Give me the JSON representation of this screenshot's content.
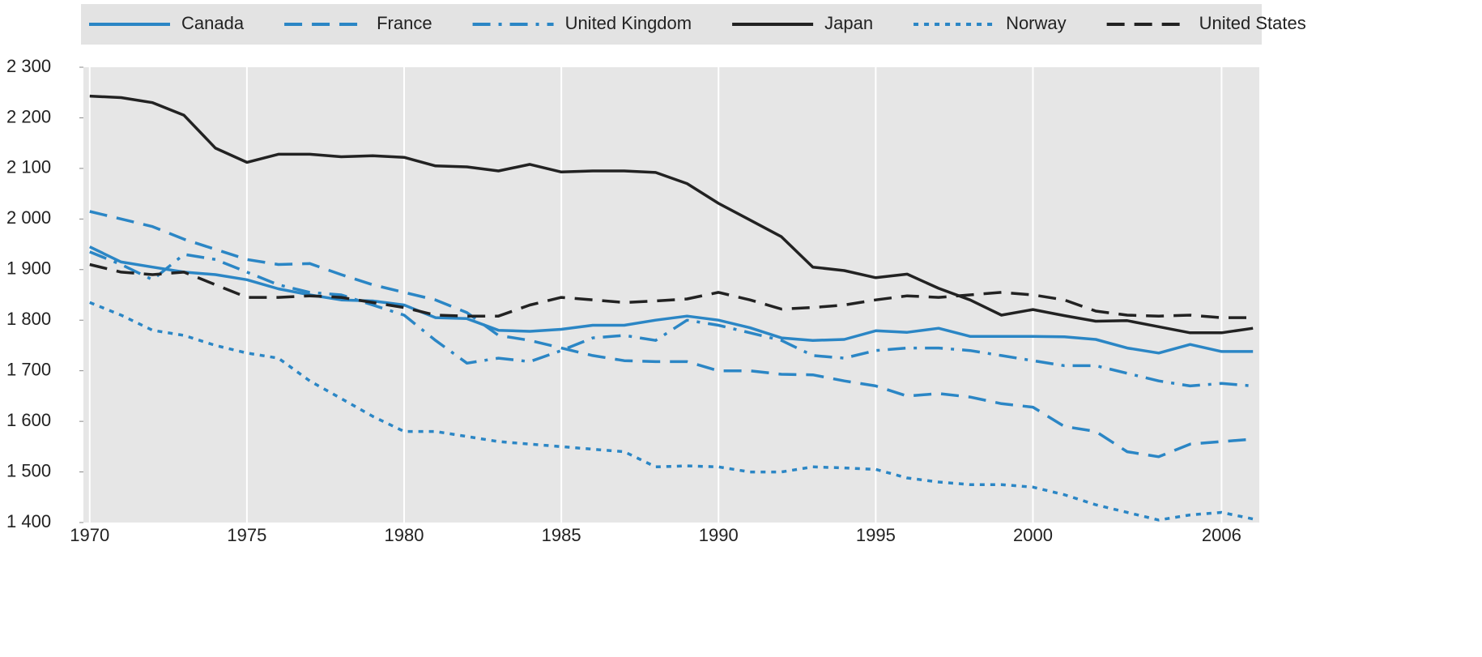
{
  "chart_data": {
    "type": "line",
    "x": [
      1970,
      1971,
      1972,
      1973,
      1974,
      1975,
      1976,
      1977,
      1978,
      1979,
      1980,
      1981,
      1982,
      1983,
      1984,
      1985,
      1986,
      1987,
      1988,
      1989,
      1990,
      1991,
      1992,
      1993,
      1994,
      1995,
      1996,
      1997,
      1998,
      1999,
      2000,
      2001,
      2002,
      2003,
      2004,
      2005,
      2006,
      2007
    ],
    "xlim": [
      1969.8,
      2007.2
    ],
    "xticks": [
      1970,
      1975,
      1980,
      1985,
      1990,
      1995,
      2000,
      2006
    ],
    "ylim": [
      1400,
      2300
    ],
    "yticks": [
      {
        "value": 1400,
        "label": "1 400"
      },
      {
        "value": 1500,
        "label": "1 500"
      },
      {
        "value": 1600,
        "label": "1 600"
      },
      {
        "value": 1700,
        "label": "1 700"
      },
      {
        "value": 1800,
        "label": "1 800"
      },
      {
        "value": 1900,
        "label": "1 900"
      },
      {
        "value": 2000,
        "label": "2 000"
      },
      {
        "value": 2100,
        "label": "2 100"
      },
      {
        "value": 2200,
        "label": "2 200"
      },
      {
        "value": 2300,
        "label": "2 300"
      }
    ],
    "grid": "x",
    "legend": "top",
    "series": [
      {
        "name": "Canada",
        "color": "#2b86c5",
        "style": "solid",
        "values": [
          1945,
          1915,
          1905,
          1895,
          1890,
          1880,
          1862,
          1850,
          1840,
          1838,
          1830,
          1805,
          1803,
          1780,
          1778,
          1782,
          1790,
          1790,
          1800,
          1808,
          1800,
          1785,
          1765,
          1760,
          1762,
          1779,
          1776,
          1784,
          1768,
          1768,
          1768,
          1767,
          1762,
          1745,
          1735,
          1752,
          1738,
          1738
        ]
      },
      {
        "name": "France",
        "color": "#2b86c5",
        "style": "dashed",
        "values": [
          2015,
          2000,
          1985,
          1960,
          1940,
          1920,
          1910,
          1912,
          1890,
          1870,
          1855,
          1840,
          1815,
          1770,
          1760,
          1745,
          1730,
          1720,
          1718,
          1718,
          1700,
          1700,
          1693,
          1692,
          1680,
          1670,
          1650,
          1655,
          1648,
          1635,
          1628,
          1590,
          1580,
          1540,
          1530,
          1555,
          1560,
          1565
        ]
      },
      {
        "name": "United Kingdom",
        "color": "#2b86c5",
        "style": "dashdot",
        "values": [
          1935,
          1910,
          1880,
          1930,
          1920,
          1895,
          1870,
          1855,
          1850,
          1830,
          1810,
          1760,
          1715,
          1725,
          1718,
          1740,
          1765,
          1770,
          1760,
          1800,
          1790,
          1775,
          1760,
          1730,
          1725,
          1740,
          1745,
          1745,
          1740,
          1730,
          1720,
          1710,
          1710,
          1695,
          1680,
          1670,
          1675,
          1670
        ]
      },
      {
        "name": "Japan",
        "color": "#222222",
        "style": "solid",
        "values": [
          2243,
          2240,
          2230,
          2205,
          2140,
          2112,
          2128,
          2128,
          2123,
          2125,
          2122,
          2105,
          2103,
          2095,
          2108,
          2093,
          2095,
          2095,
          2092,
          2070,
          2031,
          1998,
          1965,
          1905,
          1898,
          1884,
          1891,
          1863,
          1840,
          1810,
          1821,
          1809,
          1798,
          1799,
          1787,
          1775,
          1775,
          1784
        ]
      },
      {
        "name": "Norway",
        "color": "#2b86c5",
        "style": "dotted",
        "values": [
          1835,
          1810,
          1780,
          1770,
          1750,
          1735,
          1725,
          1680,
          1645,
          1610,
          1580,
          1580,
          1570,
          1560,
          1555,
          1550,
          1545,
          1540,
          1510,
          1512,
          1510,
          1500,
          1500,
          1510,
          1508,
          1505,
          1488,
          1480,
          1475,
          1475,
          1470,
          1455,
          1435,
          1420,
          1405,
          1415,
          1420,
          1407
        ]
      },
      {
        "name": "United States",
        "color": "#222222",
        "style": "dashed",
        "values": [
          1910,
          1895,
          1890,
          1895,
          1870,
          1845,
          1845,
          1848,
          1845,
          1835,
          1825,
          1810,
          1808,
          1808,
          1830,
          1845,
          1840,
          1835,
          1838,
          1842,
          1855,
          1840,
          1822,
          1825,
          1830,
          1840,
          1848,
          1845,
          1850,
          1855,
          1850,
          1840,
          1818,
          1810,
          1808,
          1810,
          1805,
          1805
        ]
      }
    ]
  }
}
